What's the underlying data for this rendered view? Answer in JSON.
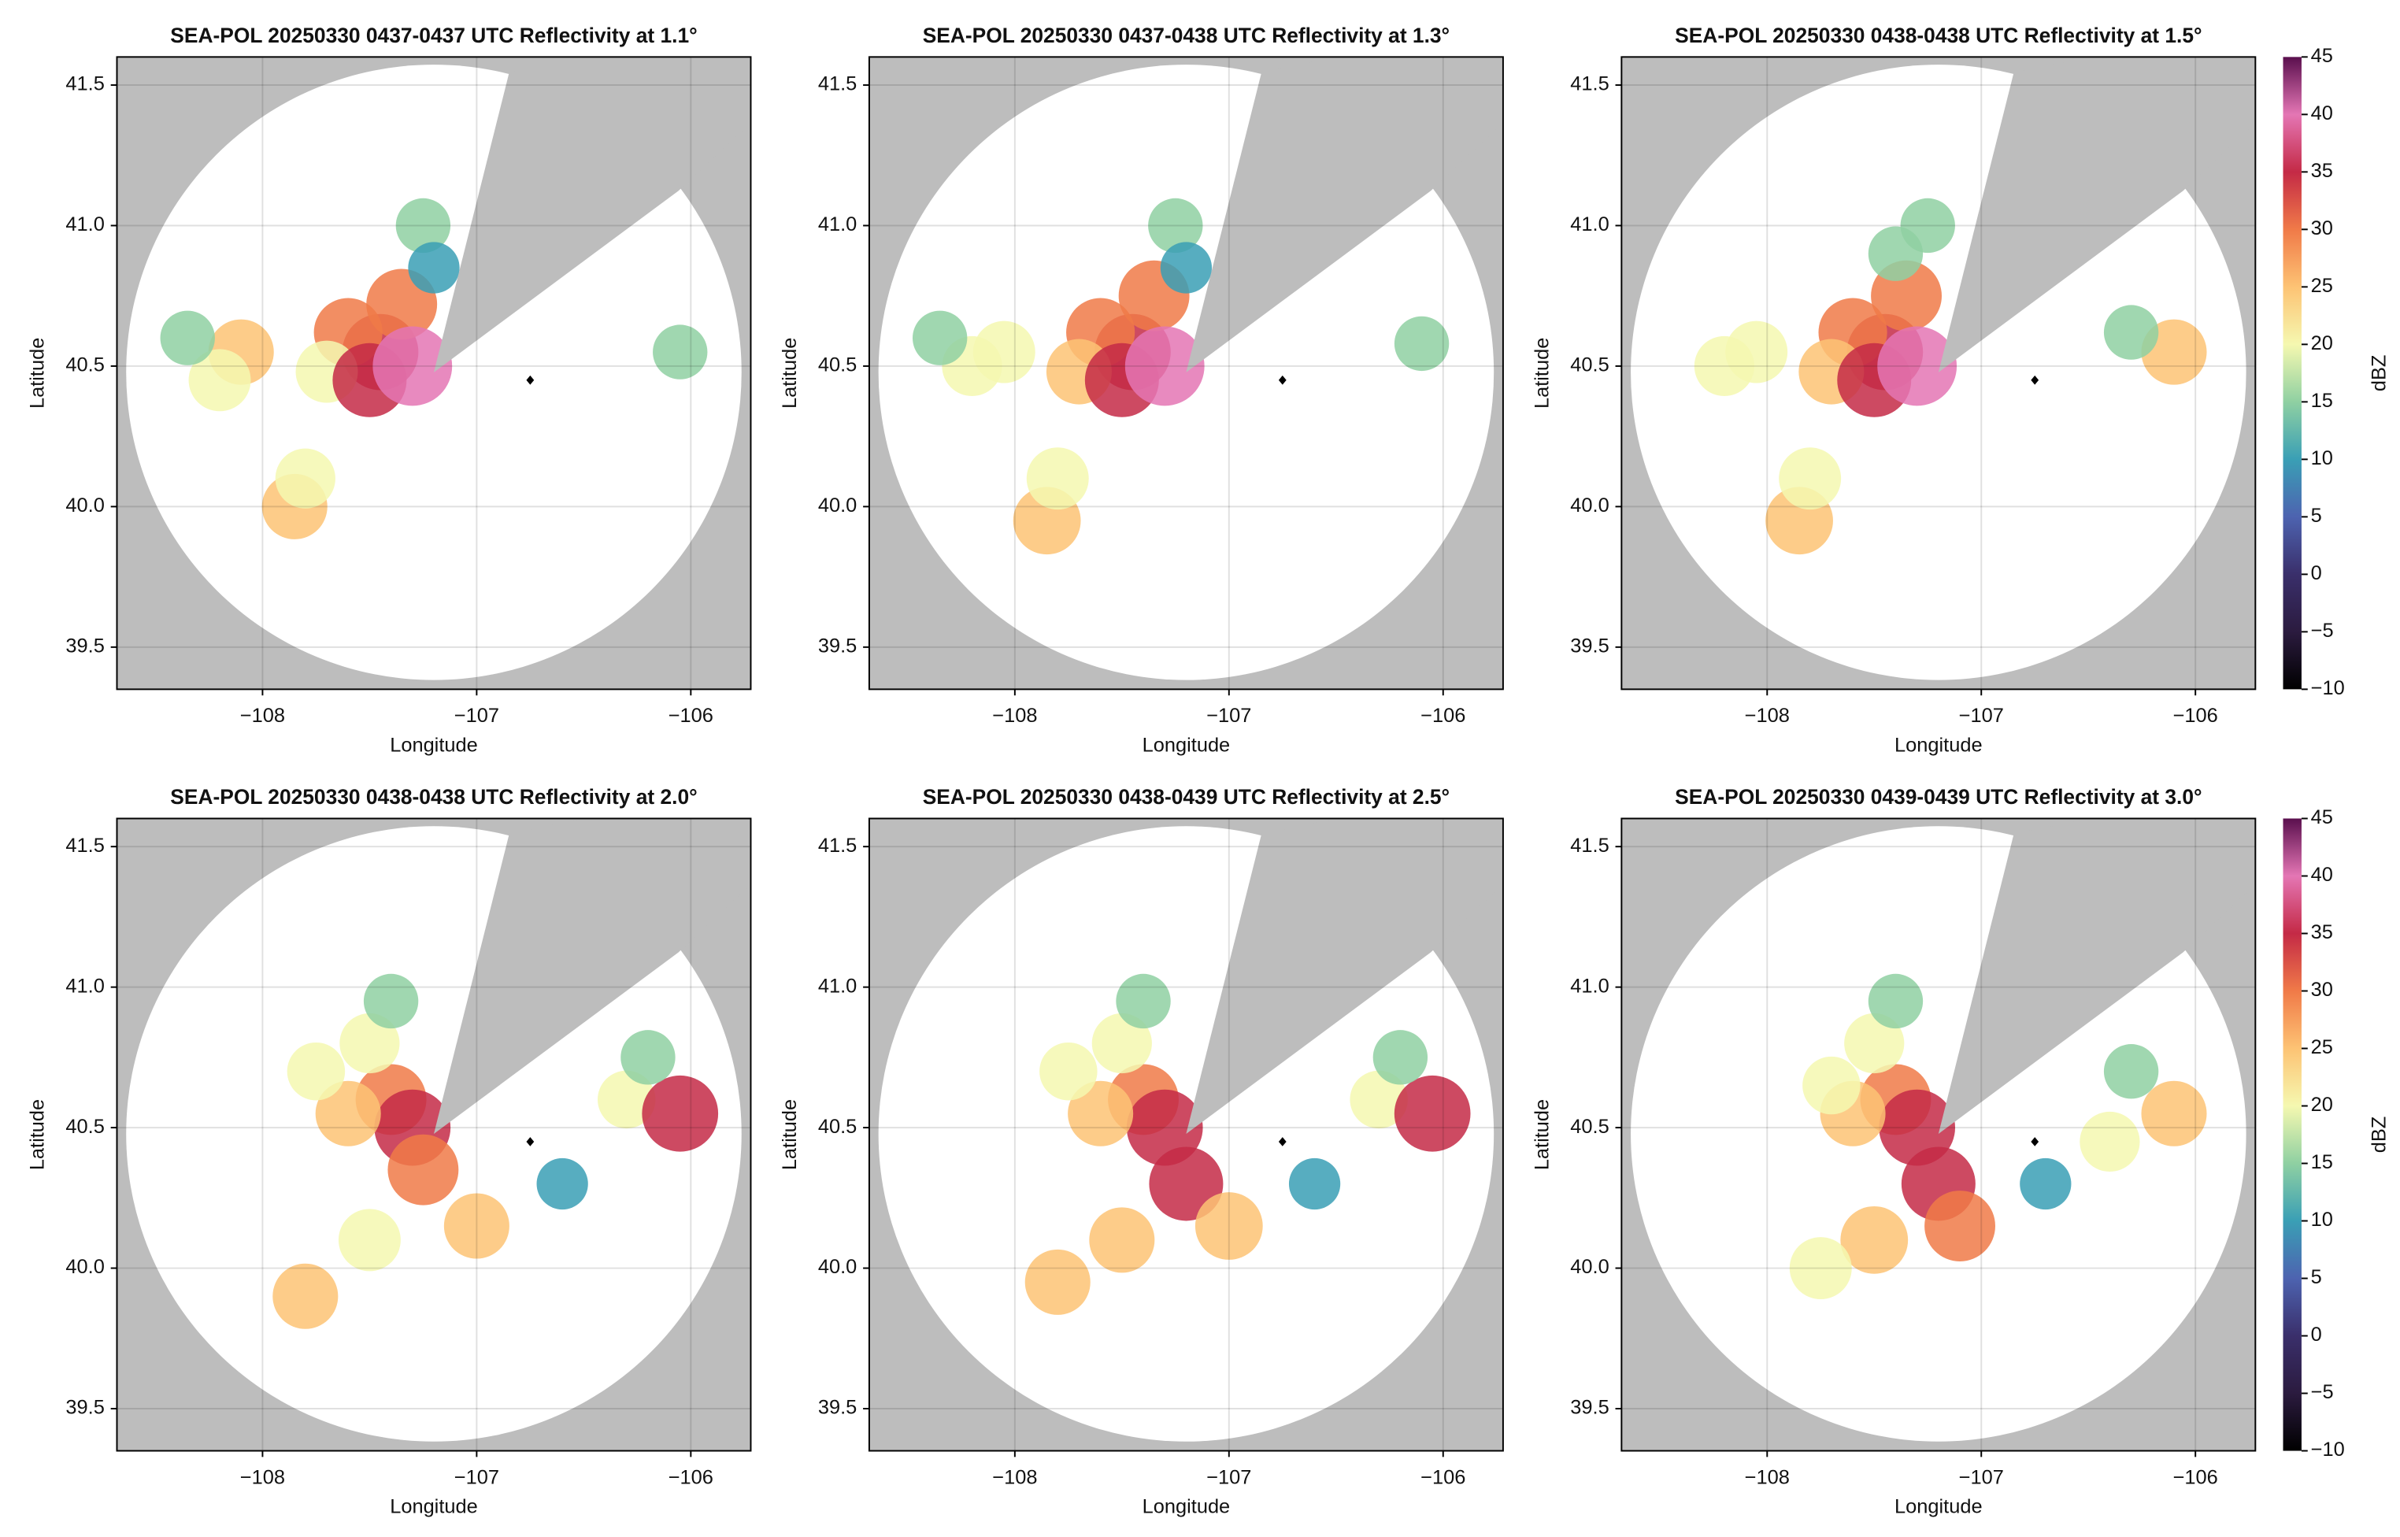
{
  "chart_data": [
    {
      "type": "radar",
      "title": "SEA-POL 20250330 0437-0437 UTC Reflectivity at 1.1°",
      "xlabel": "Longitude",
      "ylabel": "Latitude",
      "xlim": [
        -108.68,
        -105.72
      ],
      "ylim": [
        39.35,
        41.6
      ],
      "xticks": [
        {
          "value": -108,
          "label": "−108"
        },
        {
          "value": -107,
          "label": "−107"
        },
        {
          "value": -106,
          "label": "−106"
        }
      ],
      "yticks": [
        {
          "value": 39.5,
          "label": "39.5"
        },
        {
          "value": 40,
          "label": "40.0"
        },
        {
          "value": 40.5,
          "label": "40.5"
        },
        {
          "value": 41,
          "label": "41.0"
        },
        {
          "value": 41.5,
          "label": "41.5"
        }
      ],
      "grid": true,
      "marker": [
        -106.75,
        40.45
      ],
      "cells": {
        "x": [
          -107.45,
          -107.6,
          -107.35,
          -107.7,
          -107.5,
          -107.3,
          -108.1,
          -108.2,
          -108.35,
          -107.85,
          -107.8,
          -107.25,
          -107.2,
          -106.05
        ],
        "y": [
          40.55,
          40.62,
          40.72,
          40.48,
          40.45,
          40.5,
          40.55,
          40.45,
          40.6,
          40.0,
          40.1,
          41.0,
          40.85,
          40.55
        ],
        "values": [
          35,
          28,
          30,
          22,
          33,
          38,
          25,
          22,
          15,
          25,
          20,
          15,
          12,
          15
        ]
      },
      "clim": [
        -10,
        45
      ],
      "colorscale": [
        "#000000",
        "#2b1b3f",
        "#3a2f6b",
        "#4d63b0",
        "#3a9fb5",
        "#8fd0a2",
        "#f5f8b0",
        "#fdc374",
        "#f07a48",
        "#c42a46",
        "#e476b4",
        "#5a0f4e"
      ]
    },
    {
      "type": "radar",
      "title": "SEA-POL 20250330 0437-0438 UTC Reflectivity at 1.3°",
      "xlabel": "Longitude",
      "ylabel": "Latitude",
      "xlim": [
        -108.68,
        -105.72
      ],
      "ylim": [
        39.35,
        41.6
      ],
      "xticks": [
        {
          "value": -108,
          "label": "−108"
        },
        {
          "value": -107,
          "label": "−107"
        },
        {
          "value": -106,
          "label": "−106"
        }
      ],
      "yticks": [
        {
          "value": 39.5,
          "label": "39.5"
        },
        {
          "value": 40,
          "label": "40.0"
        },
        {
          "value": 40.5,
          "label": "40.5"
        },
        {
          "value": 41,
          "label": "41.0"
        },
        {
          "value": 41.5,
          "label": "41.5"
        }
      ],
      "grid": true,
      "marker": [
        -106.75,
        40.45
      ],
      "cells": {
        "x": [
          -107.45,
          -107.6,
          -107.35,
          -107.7,
          -107.5,
          -107.3,
          -108.05,
          -108.2,
          -108.35,
          -107.85,
          -107.8,
          -107.25,
          -107.2,
          -106.1
        ],
        "y": [
          40.55,
          40.62,
          40.75,
          40.48,
          40.45,
          40.5,
          40.55,
          40.5,
          40.6,
          39.95,
          40.1,
          41.0,
          40.85,
          40.58
        ],
        "values": [
          35,
          28,
          30,
          25,
          33,
          38,
          22,
          20,
          15,
          27,
          22,
          15,
          12,
          15
        ]
      },
      "clim": [
        -10,
        45
      ],
      "colorscale": [
        "#000000",
        "#2b1b3f",
        "#3a2f6b",
        "#4d63b0",
        "#3a9fb5",
        "#8fd0a2",
        "#f5f8b0",
        "#fdc374",
        "#f07a48",
        "#c42a46",
        "#e476b4",
        "#5a0f4e"
      ]
    },
    {
      "type": "radar",
      "title": "SEA-POL 20250330 0438-0438 UTC Reflectivity at 1.5°",
      "xlabel": "Longitude",
      "ylabel": "Latitude",
      "xlim": [
        -108.68,
        -105.72
      ],
      "ylim": [
        39.35,
        41.6
      ],
      "xticks": [
        {
          "value": -108,
          "label": "−108"
        },
        {
          "value": -107,
          "label": "−107"
        },
        {
          "value": -106,
          "label": "−106"
        }
      ],
      "yticks": [
        {
          "value": 39.5,
          "label": "39.5"
        },
        {
          "value": 40,
          "label": "40.0"
        },
        {
          "value": 40.5,
          "label": "40.5"
        },
        {
          "value": 41,
          "label": "41.0"
        },
        {
          "value": 41.5,
          "label": "41.5"
        }
      ],
      "grid": true,
      "marker": [
        -106.75,
        40.45
      ],
      "cells": {
        "x": [
          -107.45,
          -107.6,
          -107.35,
          -107.7,
          -107.5,
          -107.3,
          -108.05,
          -108.2,
          -107.85,
          -107.8,
          -107.25,
          -107.4,
          -106.1,
          -106.3
        ],
        "y": [
          40.55,
          40.62,
          40.75,
          40.48,
          40.45,
          40.5,
          40.55,
          40.5,
          39.95,
          40.1,
          41.0,
          40.9,
          40.55,
          40.62
        ],
        "values": [
          35,
          28,
          30,
          25,
          33,
          38,
          22,
          20,
          27,
          22,
          15,
          15,
          25,
          15
        ]
      },
      "clim": [
        -10,
        45
      ],
      "ticks": [
        {
          "value": -10,
          "label": "−10"
        },
        {
          "value": -5,
          "label": "−5"
        },
        0,
        5,
        10,
        15,
        20,
        25,
        30,
        35,
        40,
        45
      ],
      "clabel": "dBZ",
      "colorscale": [
        "#000000",
        "#2b1b3f",
        "#3a2f6b",
        "#4d63b0",
        "#3a9fb5",
        "#8fd0a2",
        "#f5f8b0",
        "#fdc374",
        "#f07a48",
        "#c42a46",
        "#e476b4",
        "#5a0f4e"
      ]
    },
    {
      "type": "radar",
      "title": "SEA-POL 20250330 0438-0438 UTC Reflectivity at 2.0°",
      "xlabel": "Longitude",
      "ylabel": "Latitude",
      "xlim": [
        -108.68,
        -105.72
      ],
      "ylim": [
        39.35,
        41.6
      ],
      "xticks": [
        {
          "value": -108,
          "label": "−108"
        },
        {
          "value": -107,
          "label": "−107"
        },
        {
          "value": -106,
          "label": "−106"
        }
      ],
      "yticks": [
        {
          "value": 39.5,
          "label": "39.5"
        },
        {
          "value": 40,
          "label": "40.0"
        },
        {
          "value": 40.5,
          "label": "40.5"
        },
        {
          "value": 41,
          "label": "41.0"
        },
        {
          "value": 41.5,
          "label": "41.5"
        }
      ],
      "grid": true,
      "marker": [
        -106.75,
        40.45
      ],
      "cells": {
        "x": [
          -107.4,
          -107.3,
          -107.5,
          -107.6,
          -107.25,
          -107.0,
          -107.5,
          -107.8,
          -106.3,
          -106.05,
          -106.2,
          -107.75,
          -107.4,
          -106.6
        ],
        "y": [
          40.6,
          40.5,
          40.8,
          40.55,
          40.35,
          40.15,
          40.1,
          39.9,
          40.6,
          40.55,
          40.75,
          40.7,
          40.95,
          40.3
        ],
        "values": [
          30,
          35,
          20,
          25,
          30,
          25,
          22,
          25,
          18,
          35,
          15,
          18,
          15,
          12
        ]
      },
      "clim": [
        -10,
        45
      ],
      "colorscale": [
        "#000000",
        "#2b1b3f",
        "#3a2f6b",
        "#4d63b0",
        "#3a9fb5",
        "#8fd0a2",
        "#f5f8b0",
        "#fdc374",
        "#f07a48",
        "#c42a46",
        "#e476b4",
        "#5a0f4e"
      ]
    },
    {
      "type": "radar",
      "title": "SEA-POL 20250330 0438-0439 UTC Reflectivity at 2.5°",
      "xlabel": "Longitude",
      "ylabel": "Latitude",
      "xlim": [
        -108.68,
        -105.72
      ],
      "ylim": [
        39.35,
        41.6
      ],
      "xticks": [
        {
          "value": -108,
          "label": "−108"
        },
        {
          "value": -107,
          "label": "−107"
        },
        {
          "value": -106,
          "label": "−106"
        }
      ],
      "yticks": [
        {
          "value": 39.5,
          "label": "39.5"
        },
        {
          "value": 40,
          "label": "40.0"
        },
        {
          "value": 40.5,
          "label": "40.5"
        },
        {
          "value": 41,
          "label": "41.0"
        },
        {
          "value": 41.5,
          "label": "41.5"
        }
      ],
      "grid": true,
      "marker": [
        -106.75,
        40.45
      ],
      "cells": {
        "x": [
          -107.4,
          -107.3,
          -107.5,
          -107.6,
          -107.2,
          -107.0,
          -107.5,
          -107.8,
          -106.3,
          -106.05,
          -106.2,
          -107.75,
          -107.4,
          -106.6
        ],
        "y": [
          40.6,
          40.5,
          40.8,
          40.55,
          40.3,
          40.15,
          40.1,
          39.95,
          40.6,
          40.55,
          40.75,
          40.7,
          40.95,
          40.3
        ],
        "values": [
          30,
          35,
          20,
          25,
          33,
          27,
          25,
          25,
          18,
          35,
          15,
          18,
          15,
          12
        ]
      },
      "clim": [
        -10,
        45
      ],
      "colorscale": [
        "#000000",
        "#2b1b3f",
        "#3a2f6b",
        "#4d63b0",
        "#3a9fb5",
        "#8fd0a2",
        "#f5f8b0",
        "#fdc374",
        "#f07a48",
        "#c42a46",
        "#e476b4",
        "#5a0f4e"
      ]
    },
    {
      "type": "radar",
      "title": "SEA-POL 20250330 0439-0439 UTC Reflectivity at 3.0°",
      "xlabel": "Longitude",
      "ylabel": "Latitude",
      "xlim": [
        -108.68,
        -105.72
      ],
      "ylim": [
        39.35,
        41.6
      ],
      "xticks": [
        {
          "value": -108,
          "label": "−108"
        },
        {
          "value": -107,
          "label": "−107"
        },
        {
          "value": -106,
          "label": "−106"
        }
      ],
      "yticks": [
        {
          "value": 39.5,
          "label": "39.5"
        },
        {
          "value": 40,
          "label": "40.0"
        },
        {
          "value": 40.5,
          "label": "40.5"
        },
        {
          "value": 41,
          "label": "41.0"
        },
        {
          "value": 41.5,
          "label": "41.5"
        }
      ],
      "grid": true,
      "marker": [
        -106.75,
        40.45
      ],
      "cells": {
        "x": [
          -107.4,
          -107.3,
          -107.5,
          -107.6,
          -107.2,
          -107.1,
          -107.5,
          -107.75,
          -106.4,
          -106.1,
          -106.3,
          -107.7,
          -107.4,
          -106.7
        ],
        "y": [
          40.6,
          40.5,
          40.8,
          40.55,
          40.3,
          40.15,
          40.1,
          40.0,
          40.45,
          40.55,
          40.7,
          40.65,
          40.95,
          40.3
        ],
        "values": [
          30,
          35,
          20,
          25,
          33,
          30,
          27,
          22,
          20,
          25,
          15,
          18,
          15,
          12
        ]
      },
      "clim": [
        -10,
        45
      ],
      "ticks": [
        {
          "value": -10,
          "label": "−10"
        },
        {
          "value": -5,
          "label": "−5"
        },
        0,
        5,
        10,
        15,
        20,
        25,
        30,
        35,
        40,
        45
      ],
      "clabel": "dBZ",
      "colorscale": [
        "#000000",
        "#2b1b3f",
        "#3a2f6b",
        "#4d63b0",
        "#3a9fb5",
        "#8fd0a2",
        "#f5f8b0",
        "#fdc374",
        "#f07a48",
        "#c42a46",
        "#e476b4",
        "#5a0f4e"
      ]
    }
  ]
}
